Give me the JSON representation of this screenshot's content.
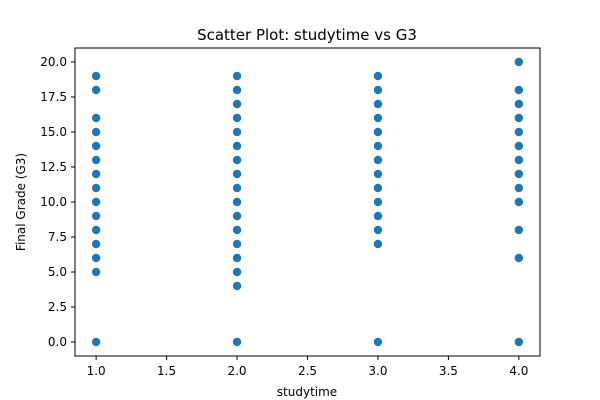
{
  "chart_data": {
    "type": "scatter",
    "title": "Scatter Plot: studytime vs G3",
    "xlabel": "studytime",
    "ylabel": "Final Grade (G3)",
    "xlim": [
      0.85,
      4.15
    ],
    "ylim": [
      -1.0,
      21.0
    ],
    "xticks": [
      "1.0",
      "1.5",
      "2.0",
      "2.5",
      "3.0",
      "3.5",
      "4.0"
    ],
    "yticks": [
      "0.0",
      "2.5",
      "5.0",
      "7.5",
      "10.0",
      "12.5",
      "15.0",
      "17.5",
      "20.0"
    ],
    "grid": false,
    "legend": "none",
    "marker_color": "#1f77b4",
    "series": [
      {
        "points": [
          [
            1,
            0
          ],
          [
            1,
            5
          ],
          [
            1,
            6
          ],
          [
            1,
            7
          ],
          [
            1,
            8
          ],
          [
            1,
            9
          ],
          [
            1,
            10
          ],
          [
            1,
            11
          ],
          [
            1,
            12
          ],
          [
            1,
            13
          ],
          [
            1,
            14
          ],
          [
            1,
            15
          ],
          [
            1,
            16
          ],
          [
            1,
            18
          ],
          [
            1,
            19
          ],
          [
            2,
            0
          ],
          [
            2,
            4
          ],
          [
            2,
            5
          ],
          [
            2,
            6
          ],
          [
            2,
            7
          ],
          [
            2,
            8
          ],
          [
            2,
            9
          ],
          [
            2,
            10
          ],
          [
            2,
            11
          ],
          [
            2,
            12
          ],
          [
            2,
            13
          ],
          [
            2,
            14
          ],
          [
            2,
            15
          ],
          [
            2,
            16
          ],
          [
            2,
            17
          ],
          [
            2,
            18
          ],
          [
            2,
            19
          ],
          [
            3,
            0
          ],
          [
            3,
            7
          ],
          [
            3,
            8
          ],
          [
            3,
            9
          ],
          [
            3,
            10
          ],
          [
            3,
            11
          ],
          [
            3,
            12
          ],
          [
            3,
            13
          ],
          [
            3,
            14
          ],
          [
            3,
            15
          ],
          [
            3,
            16
          ],
          [
            3,
            17
          ],
          [
            3,
            18
          ],
          [
            3,
            19
          ],
          [
            4,
            0
          ],
          [
            4,
            6
          ],
          [
            4,
            8
          ],
          [
            4,
            10
          ],
          [
            4,
            11
          ],
          [
            4,
            12
          ],
          [
            4,
            13
          ],
          [
            4,
            14
          ],
          [
            4,
            15
          ],
          [
            4,
            16
          ],
          [
            4,
            17
          ],
          [
            4,
            18
          ],
          [
            4,
            20
          ]
        ]
      }
    ]
  }
}
